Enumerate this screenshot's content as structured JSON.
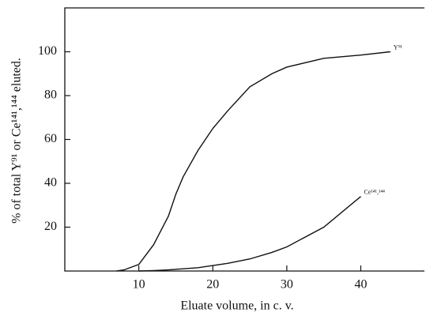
{
  "chart_data": {
    "type": "line",
    "x_label": "Eluate volume, in c. v.",
    "y_label": "% of total Y⁹¹ or Ce¹⁴¹,¹⁴⁴ eluted.",
    "x": [
      7,
      8,
      10,
      12,
      14,
      15,
      16,
      18,
      20,
      22,
      25,
      28,
      30,
      35,
      40,
      44
    ],
    "series": [
      {
        "name": "Y⁹¹",
        "color": "#111111",
        "values": [
          0,
          0.5,
          3,
          12,
          25,
          35,
          43,
          55,
          65,
          73,
          84,
          90,
          93,
          97,
          98.5,
          100
        ]
      },
      {
        "name": "Ce¹⁴¹,¹⁴⁴",
        "color": "#111111",
        "values": [
          null,
          null,
          0,
          0.2,
          0.5,
          0.8,
          1,
          1.5,
          2.5,
          3.5,
          5.5,
          8.5,
          11,
          20,
          34,
          null
        ]
      }
    ],
    "xlim": [
      0,
      48.6
    ],
    "ylim": [
      0,
      120
    ],
    "xticks": [
      10,
      20,
      30,
      40
    ],
    "yticks": [
      20,
      40,
      60,
      80,
      100
    ]
  }
}
